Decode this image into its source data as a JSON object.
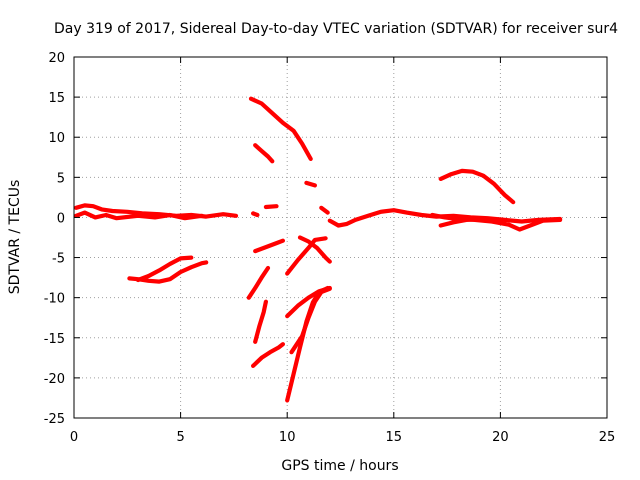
{
  "chart_data": {
    "type": "line",
    "title": "Day 319 of 2017, Sidereal Day-to-day VTEC variation (SDTVAR) for receiver sur4",
    "xlabel": "GPS time / hours",
    "ylabel": "SDTVAR / TECUs",
    "xlim": [
      0,
      25
    ],
    "ylim": [
      -25,
      20
    ],
    "xticks": [
      0,
      5,
      10,
      15,
      20,
      25
    ],
    "yticks": [
      -25,
      -20,
      -15,
      -10,
      -5,
      0,
      5,
      10,
      15,
      20
    ],
    "grid": true,
    "color": "#ff0000",
    "series": [
      {
        "name": "near-zero-left-a",
        "points": [
          [
            0.1,
            1.2
          ],
          [
            0.5,
            1.5
          ],
          [
            0.9,
            1.4
          ],
          [
            1.3,
            1.0
          ],
          [
            1.8,
            0.8
          ],
          [
            2.5,
            0.7
          ],
          [
            3.2,
            0.5
          ],
          [
            4.0,
            0.4
          ],
          [
            4.8,
            0.2
          ],
          [
            5.5,
            0.3
          ],
          [
            6.2,
            0.1
          ],
          [
            7.0,
            0.4
          ],
          [
            7.6,
            0.2
          ]
        ]
      },
      {
        "name": "near-zero-left-b",
        "points": [
          [
            0.1,
            0.2
          ],
          [
            0.5,
            0.6
          ],
          [
            1.0,
            0.0
          ],
          [
            1.5,
            0.3
          ],
          [
            2.0,
            -0.1
          ],
          [
            3.0,
            0.2
          ],
          [
            3.8,
            0.0
          ],
          [
            4.5,
            0.3
          ],
          [
            5.2,
            -0.1
          ],
          [
            6.0,
            0.2
          ]
        ]
      },
      {
        "name": "lower-left-arc",
        "points": [
          [
            2.6,
            -7.6
          ],
          [
            3.0,
            -7.7
          ],
          [
            3.5,
            -7.9
          ],
          [
            4.0,
            -8.0
          ],
          [
            4.5,
            -7.7
          ],
          [
            5.0,
            -6.8
          ],
          [
            5.5,
            -6.2
          ],
          [
            6.0,
            -5.7
          ],
          [
            6.2,
            -5.6
          ]
        ]
      },
      {
        "name": "lower-left-rise",
        "points": [
          [
            3.0,
            -7.8
          ],
          [
            3.5,
            -7.3
          ],
          [
            4.0,
            -6.6
          ],
          [
            4.5,
            -5.8
          ],
          [
            5.0,
            -5.1
          ],
          [
            5.5,
            -5.0
          ]
        ]
      },
      {
        "name": "upper-fall",
        "points": [
          [
            8.3,
            14.8
          ],
          [
            8.8,
            14.2
          ],
          [
            9.3,
            13.0
          ],
          [
            9.8,
            11.8
          ],
          [
            10.3,
            10.8
          ],
          [
            10.7,
            9.2
          ],
          [
            11.1,
            7.3
          ]
        ]
      },
      {
        "name": "upper-short",
        "points": [
          [
            8.5,
            9.0
          ],
          [
            8.8,
            8.3
          ],
          [
            9.1,
            7.6
          ],
          [
            9.3,
            7.0
          ]
        ]
      },
      {
        "name": "mid-short-a",
        "points": [
          [
            9.0,
            1.3
          ],
          [
            9.5,
            1.4
          ]
        ]
      },
      {
        "name": "mid-short-b",
        "points": [
          [
            10.9,
            4.3
          ],
          [
            11.3,
            4.0
          ]
        ]
      },
      {
        "name": "mid-short-c",
        "points": [
          [
            11.6,
            1.2
          ],
          [
            11.9,
            0.6
          ]
        ]
      },
      {
        "name": "mid-short-d",
        "points": [
          [
            8.4,
            0.5
          ],
          [
            8.6,
            0.3
          ]
        ]
      },
      {
        "name": "mid-rise-left",
        "points": [
          [
            8.5,
            -4.2
          ],
          [
            9.0,
            -3.7
          ],
          [
            9.5,
            -3.2
          ],
          [
            9.8,
            -2.9
          ]
        ]
      },
      {
        "name": "mid-fall-right",
        "points": [
          [
            10.6,
            -2.5
          ],
          [
            11.0,
            -3.0
          ],
          [
            11.4,
            -3.8
          ],
          [
            11.8,
            -5.0
          ],
          [
            12.0,
            -5.5
          ]
        ]
      },
      {
        "name": "mid-rise-right",
        "points": [
          [
            10.0,
            -7.0
          ],
          [
            10.5,
            -5.3
          ],
          [
            11.0,
            -3.8
          ],
          [
            11.3,
            -2.8
          ],
          [
            11.8,
            -2.6
          ]
        ]
      },
      {
        "name": "down-left-a",
        "points": [
          [
            8.2,
            -10.0
          ],
          [
            8.5,
            -8.8
          ],
          [
            8.8,
            -7.5
          ],
          [
            9.1,
            -6.3
          ]
        ]
      },
      {
        "name": "down-left-b",
        "points": [
          [
            8.5,
            -15.5
          ],
          [
            8.7,
            -13.5
          ],
          [
            8.9,
            -11.8
          ],
          [
            9.0,
            -10.5
          ]
        ]
      },
      {
        "name": "down-left-c",
        "points": [
          [
            8.4,
            -18.5
          ],
          [
            8.8,
            -17.5
          ],
          [
            9.2,
            -16.8
          ],
          [
            9.6,
            -16.2
          ],
          [
            9.8,
            -15.8
          ]
        ]
      },
      {
        "name": "v-right-steep",
        "points": [
          [
            10.0,
            -22.8
          ],
          [
            10.3,
            -19.5
          ],
          [
            10.6,
            -16.2
          ],
          [
            10.9,
            -13.0
          ],
          [
            11.2,
            -10.6
          ],
          [
            11.5,
            -9.3
          ],
          [
            11.9,
            -8.8
          ]
        ]
      },
      {
        "name": "v-right-mid",
        "points": [
          [
            10.2,
            -16.8
          ],
          [
            10.7,
            -14.8
          ],
          [
            11.0,
            -12.5
          ],
          [
            11.3,
            -10.5
          ],
          [
            11.6,
            -9.3
          ],
          [
            12.0,
            -8.9
          ]
        ]
      },
      {
        "name": "v-right-top",
        "points": [
          [
            10.0,
            -12.3
          ],
          [
            10.5,
            -11.0
          ],
          [
            11.0,
            -10.0
          ],
          [
            11.5,
            -9.2
          ],
          [
            12.0,
            -8.8
          ]
        ]
      },
      {
        "name": "near-zero-right-a",
        "points": [
          [
            12.0,
            -0.4
          ],
          [
            12.4,
            -1.0
          ],
          [
            12.8,
            -0.8
          ],
          [
            13.2,
            -0.3
          ],
          [
            13.8,
            0.2
          ],
          [
            14.4,
            0.7
          ],
          [
            15.0,
            0.9
          ],
          [
            15.6,
            0.6
          ],
          [
            16.3,
            0.3
          ],
          [
            17.0,
            0.1
          ],
          [
            17.8,
            0.2
          ],
          [
            18.6,
            0.0
          ],
          [
            19.4,
            -0.1
          ],
          [
            20.2,
            -0.3
          ],
          [
            21.0,
            -0.5
          ],
          [
            21.8,
            -0.3
          ],
          [
            22.8,
            -0.2
          ]
        ]
      },
      {
        "name": "near-zero-right-b",
        "points": [
          [
            16.8,
            0.3
          ],
          [
            17.4,
            0.0
          ],
          [
            18.0,
            -0.2
          ],
          [
            18.8,
            -0.3
          ],
          [
            19.6,
            -0.5
          ],
          [
            20.4,
            -0.9
          ],
          [
            20.9,
            -1.5
          ],
          [
            21.4,
            -1.0
          ],
          [
            22.0,
            -0.4
          ],
          [
            22.8,
            -0.3
          ]
        ]
      },
      {
        "name": "near-zero-right-c",
        "points": [
          [
            17.2,
            -1.0
          ],
          [
            17.8,
            -0.6
          ],
          [
            18.4,
            -0.3
          ],
          [
            19.0,
            -0.2
          ]
        ]
      },
      {
        "name": "bump-right",
        "points": [
          [
            17.2,
            4.8
          ],
          [
            17.7,
            5.4
          ],
          [
            18.2,
            5.8
          ],
          [
            18.7,
            5.7
          ],
          [
            19.2,
            5.2
          ],
          [
            19.7,
            4.2
          ],
          [
            20.2,
            2.8
          ],
          [
            20.6,
            1.9
          ]
        ]
      }
    ]
  }
}
